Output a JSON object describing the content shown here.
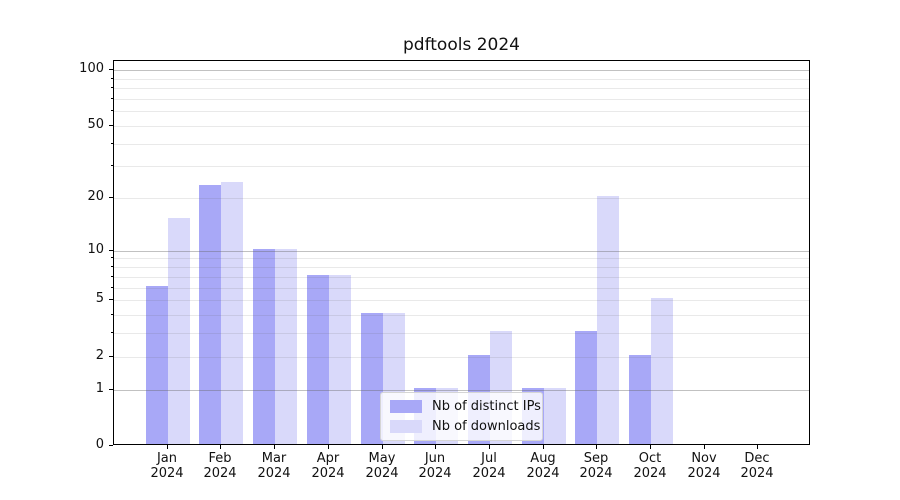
{
  "title": "pdftools 2024",
  "colors": {
    "distinct_ips": "#a8a8f7",
    "downloads": "#d9d9fa",
    "grid_major": "#b0b0b0",
    "grid_minor": "#e4e4e4",
    "axis": "#000000"
  },
  "legend": {
    "items": [
      {
        "label": "Nb of distinct IPs",
        "series": "distinct_ips"
      },
      {
        "label": "Nb of downloads",
        "series": "downloads"
      }
    ]
  },
  "x_axis": {
    "labels": [
      {
        "line1": "Jan",
        "line2": "2024"
      },
      {
        "line1": "Feb",
        "line2": "2024"
      },
      {
        "line1": "Mar",
        "line2": "2024"
      },
      {
        "line1": "Apr",
        "line2": "2024"
      },
      {
        "line1": "May",
        "line2": "2024"
      },
      {
        "line1": "Jun",
        "line2": "2024"
      },
      {
        "line1": "Jul",
        "line2": "2024"
      },
      {
        "line1": "Aug",
        "line2": "2024"
      },
      {
        "line1": "Sep",
        "line2": "2024"
      },
      {
        "line1": "Oct",
        "line2": "2024"
      },
      {
        "line1": "Nov",
        "line2": "2024"
      },
      {
        "line1": "Dec",
        "line2": "2024"
      }
    ]
  },
  "chart_data": {
    "type": "bar",
    "title": "pdftools 2024",
    "categories": [
      "Jan 2024",
      "Feb 2024",
      "Mar 2024",
      "Apr 2024",
      "May 2024",
      "Jun 2024",
      "Jul 2024",
      "Aug 2024",
      "Sep 2024",
      "Oct 2024",
      "Nov 2024",
      "Dec 2024"
    ],
    "series": [
      {
        "key": "distinct_ips",
        "name": "Nb of distinct IPs",
        "values": [
          6,
          23,
          10,
          7,
          4,
          1,
          2,
          1,
          3,
          2,
          0,
          0
        ]
      },
      {
        "key": "downloads",
        "name": "Nb of downloads",
        "values": [
          15,
          24,
          10,
          7,
          4,
          1,
          3,
          1,
          20,
          5,
          0,
          0
        ]
      }
    ],
    "xlabel": "",
    "ylabel": "",
    "y_scale": "log10(1+v)",
    "y_ticks": [
      100,
      50,
      20,
      10,
      5,
      2,
      1,
      0
    ],
    "y_major_gridlines": [
      100,
      10,
      1
    ],
    "y_minor_ticks": [
      3,
      4,
      6,
      7,
      8,
      9,
      30,
      40,
      60,
      70,
      80,
      90
    ],
    "ylim": [
      0,
      112
    ],
    "grid": true,
    "legend_position": "lower center"
  }
}
